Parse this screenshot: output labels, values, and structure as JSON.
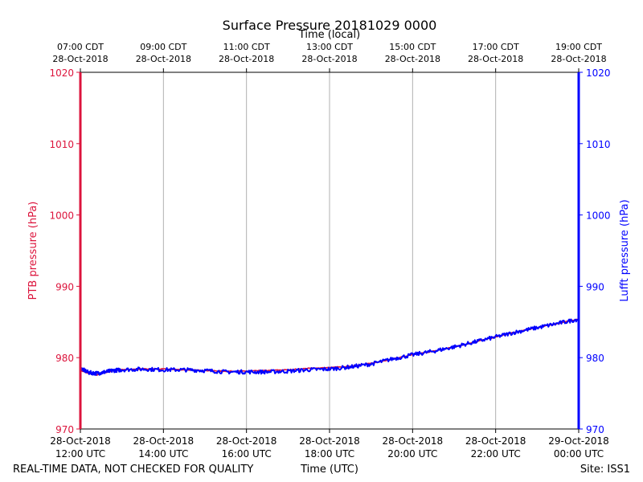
{
  "chart_data": {
    "type": "line",
    "title": "Surface Pressure 20181029 0000",
    "top_xlabel": "Time (local)",
    "xlabel": "Time (UTC)",
    "ylabel_left": "PTB pressure (hPa)",
    "ylabel_right": "Lufft pressure (hPa)",
    "ylim": [
      970,
      1020
    ],
    "yticks": [
      "970",
      "980",
      "990",
      "1000",
      "1010",
      "1020"
    ],
    "xlim_hours_utc": [
      12,
      24
    ],
    "x_ticks_bottom": [
      {
        "hour": 12,
        "line1": "28-Oct-2018",
        "line2": "12:00 UTC"
      },
      {
        "hour": 14,
        "line1": "28-Oct-2018",
        "line2": "14:00 UTC"
      },
      {
        "hour": 16,
        "line1": "28-Oct-2018",
        "line2": "16:00 UTC"
      },
      {
        "hour": 18,
        "line1": "28-Oct-2018",
        "line2": "18:00 UTC"
      },
      {
        "hour": 20,
        "line1": "28-Oct-2018",
        "line2": "20:00 UTC"
      },
      {
        "hour": 22,
        "line1": "28-Oct-2018",
        "line2": "22:00 UTC"
      },
      {
        "hour": 24,
        "line1": "29-Oct-2018",
        "line2": "00:00 UTC"
      }
    ],
    "x_ticks_top": [
      {
        "hour": 12,
        "line1": "07:00 CDT",
        "line2": "28-Oct-2018"
      },
      {
        "hour": 14,
        "line1": "09:00 CDT",
        "line2": "28-Oct-2018"
      },
      {
        "hour": 16,
        "line1": "11:00 CDT",
        "line2": "28-Oct-2018"
      },
      {
        "hour": 18,
        "line1": "13:00 CDT",
        "line2": "28-Oct-2018"
      },
      {
        "hour": 20,
        "line1": "15:00 CDT",
        "line2": "28-Oct-2018"
      },
      {
        "hour": 22,
        "line1": "17:00 CDT",
        "line2": "28-Oct-2018"
      },
      {
        "hour": 24,
        "line1": "19:00 CDT",
        "line2": "28-Oct-2018"
      }
    ],
    "grid": true,
    "series": [
      {
        "name": "PTB pressure",
        "axis": "left",
        "color": "#dc143c",
        "x": [
          12.0,
          12.2,
          12.4,
          12.6,
          12.8,
          13.0,
          13.5,
          14.0,
          14.5,
          15.0,
          15.5,
          16.0,
          16.5,
          17.0,
          17.5,
          18.0,
          18.5,
          19.0,
          19.5,
          20.0,
          20.5,
          21.0,
          21.5,
          22.0,
          22.5,
          23.0,
          23.5,
          24.0
        ],
        "y": [
          978.2,
          977.8,
          977.6,
          977.9,
          978.2,
          978.3,
          978.4,
          978.4,
          978.3,
          978.2,
          978.1,
          978.1,
          978.2,
          978.3,
          978.5,
          978.6,
          978.8,
          979.2,
          979.8,
          980.4,
          980.9,
          981.5,
          982.2,
          982.9,
          983.6,
          984.2,
          984.8,
          985.4
        ]
      },
      {
        "name": "Lufft pressure",
        "axis": "right",
        "color": "#0000ff",
        "x": [
          12.0,
          12.2,
          12.4,
          12.6,
          12.8,
          13.0,
          13.5,
          14.0,
          14.5,
          15.0,
          15.5,
          16.0,
          16.5,
          17.0,
          17.5,
          18.0,
          18.5,
          19.0,
          19.5,
          20.0,
          20.5,
          21.0,
          21.5,
          22.0,
          22.5,
          23.0,
          23.5,
          24.0
        ],
        "y": [
          978.5,
          977.9,
          977.8,
          978.0,
          978.2,
          978.3,
          978.4,
          978.3,
          978.3,
          978.2,
          978.0,
          978.0,
          978.0,
          978.1,
          978.3,
          978.4,
          978.7,
          979.1,
          979.8,
          980.4,
          980.9,
          981.5,
          982.2,
          982.9,
          983.6,
          984.2,
          984.8,
          985.4
        ]
      }
    ]
  },
  "footer": {
    "left": "REAL-TIME DATA, NOT CHECKED FOR QUALITY",
    "right": "Site: ISS1"
  }
}
